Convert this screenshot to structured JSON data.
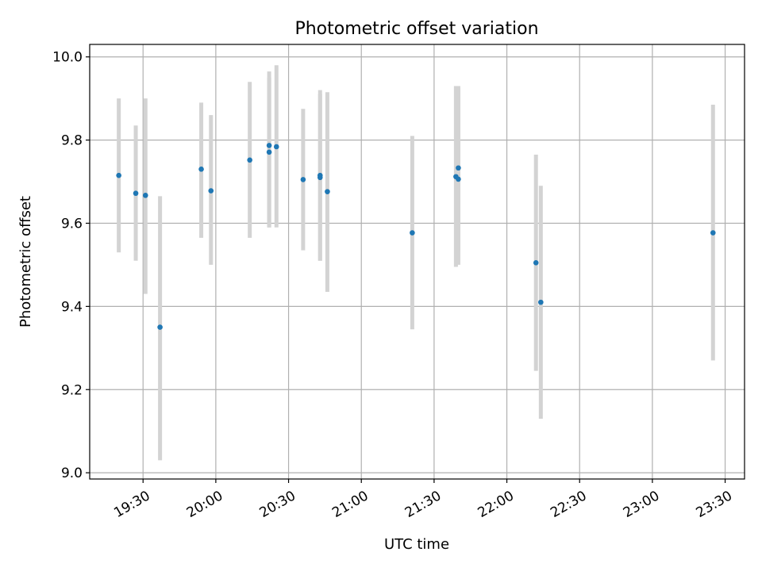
{
  "chart_data": {
    "type": "scatter",
    "title": "Photometric offset variation",
    "xlabel": "UTC time",
    "ylabel": "Photometric offset",
    "x_tick_labels": [
      "19:30",
      "20:00",
      "20:30",
      "21:00",
      "21:30",
      "22:00",
      "22:30",
      "23:00",
      "23:30"
    ],
    "y_tick_labels": [
      "9.0",
      "9.2",
      "9.4",
      "9.6",
      "9.8",
      "10.0"
    ],
    "xlim": [
      "19:08",
      "23:38"
    ],
    "ylim": [
      8.985,
      10.03
    ],
    "grid": true,
    "colors": {
      "points": "#1f77b4",
      "error_bars": "#d3d3d3",
      "grid": "#b0b0b0"
    },
    "series": [
      {
        "points": [
          {
            "time": "19:20",
            "y": 9.715,
            "ylow": 9.53,
            "yhigh": 9.9
          },
          {
            "time": "19:27",
            "y": 9.672,
            "ylow": 9.51,
            "yhigh": 9.835
          },
          {
            "time": "19:31",
            "y": 9.667,
            "ylow": 9.43,
            "yhigh": 9.9
          },
          {
            "time": "19:37",
            "y": 9.35,
            "ylow": 9.03,
            "yhigh": 9.665
          },
          {
            "time": "19:54",
            "y": 9.73,
            "ylow": 9.565,
            "yhigh": 9.89
          },
          {
            "time": "19:58",
            "y": 9.678,
            "ylow": 9.5,
            "yhigh": 9.86
          },
          {
            "time": "20:14",
            "y": 9.752,
            "ylow": 9.565,
            "yhigh": 9.94
          },
          {
            "time": "20:22",
            "y": 9.787,
            "ylow": 9.59,
            "yhigh": 9.965
          },
          {
            "time": "20:22",
            "y": 9.771,
            "ylow": 9.59,
            "yhigh": 9.95
          },
          {
            "time": "20:25",
            "y": 9.784,
            "ylow": 9.59,
            "yhigh": 9.98
          },
          {
            "time": "20:36",
            "y": 9.705,
            "ylow": 9.535,
            "yhigh": 9.875
          },
          {
            "time": "20:43",
            "y": 9.715,
            "ylow": 9.51,
            "yhigh": 9.92
          },
          {
            "time": "20:43",
            "y": 9.71,
            "ylow": 9.51,
            "yhigh": 9.91
          },
          {
            "time": "20:46",
            "y": 9.676,
            "ylow": 9.435,
            "yhigh": 9.915
          },
          {
            "time": "21:21",
            "y": 9.577,
            "ylow": 9.345,
            "yhigh": 9.81
          },
          {
            "time": "21:39",
            "y": 9.712,
            "ylow": 9.495,
            "yhigh": 9.93
          },
          {
            "time": "21:40",
            "y": 9.706,
            "ylow": 9.5,
            "yhigh": 9.925
          },
          {
            "time": "21:40",
            "y": 9.733,
            "ylow": 9.535,
            "yhigh": 9.93
          },
          {
            "time": "22:12",
            "y": 9.505,
            "ylow": 9.245,
            "yhigh": 9.765
          },
          {
            "time": "22:14",
            "y": 9.41,
            "ylow": 9.13,
            "yhigh": 9.69
          },
          {
            "time": "23:25",
            "y": 9.577,
            "ylow": 9.27,
            "yhigh": 9.885
          }
        ]
      }
    ]
  }
}
